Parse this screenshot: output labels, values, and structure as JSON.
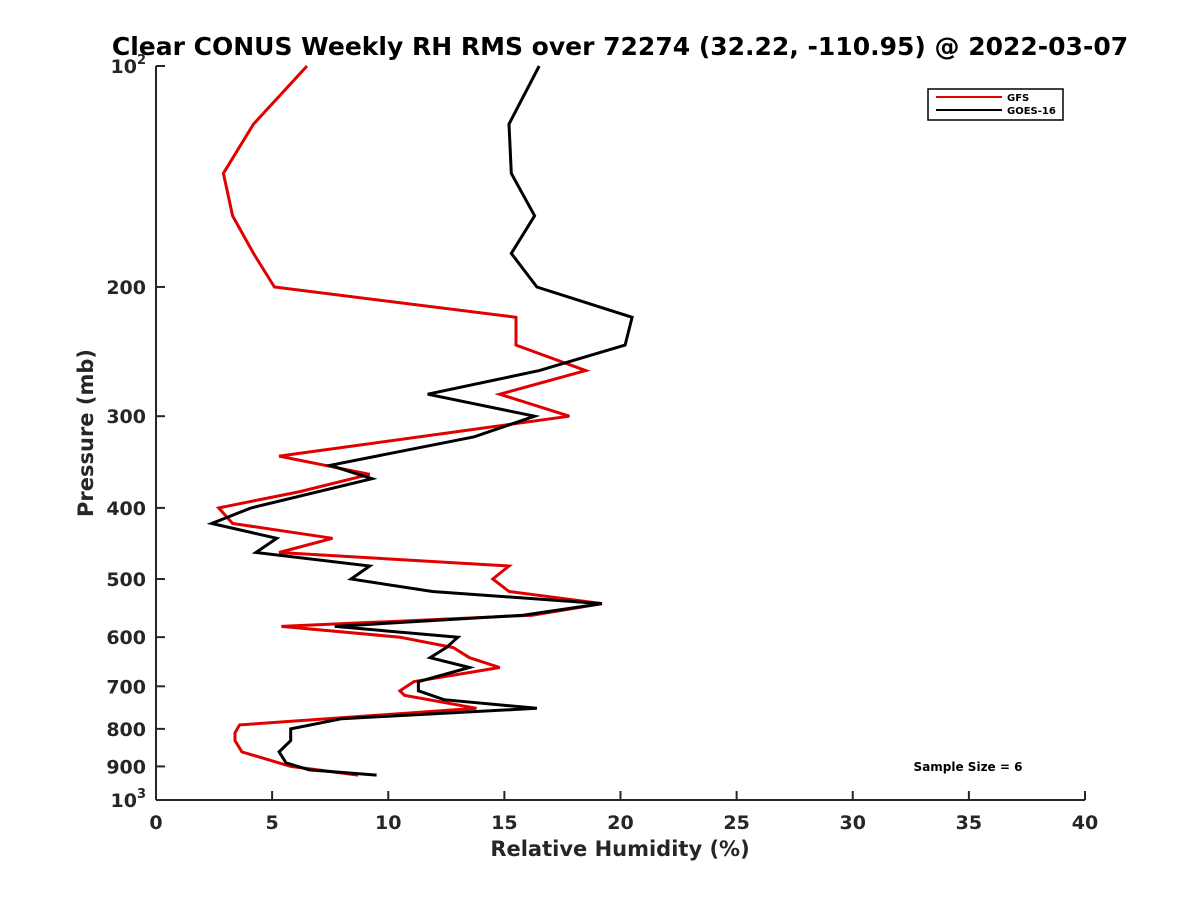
{
  "chart_data": {
    "type": "line",
    "title": "Clear CONUS Weekly RH RMS over 72274 (32.22, -110.95) @ 2022-03-07",
    "xlabel": "Relative Humidity (%)",
    "ylabel": "Pressure (mb)",
    "xlim": [
      0,
      40
    ],
    "ylim": [
      100,
      1000
    ],
    "y_scale": "log",
    "y_reversed": true,
    "x_ticks": [
      "0",
      "5",
      "10",
      "15",
      "20",
      "25",
      "30",
      "35",
      "40"
    ],
    "y_ticks": [
      {
        "value": 100,
        "base": "10",
        "exp": "2"
      },
      {
        "value": 200,
        "label": "200"
      },
      {
        "value": 300,
        "label": "300"
      },
      {
        "value": 400,
        "label": "400"
      },
      {
        "value": 500,
        "label": "500"
      },
      {
        "value": 600,
        "label": "600"
      },
      {
        "value": 700,
        "label": "700"
      },
      {
        "value": 800,
        "label": "800"
      },
      {
        "value": 900,
        "label": "900"
      },
      {
        "value": 1000,
        "base": "10",
        "exp": "3"
      }
    ],
    "grid": false,
    "legend_position": "top-right",
    "annotation": "Sample Size = 6",
    "series": [
      {
        "name": "GFS",
        "color": "#e00000",
        "points": [
          {
            "x": 6.5,
            "p": 100
          },
          {
            "x": 4.2,
            "p": 120
          },
          {
            "x": 2.9,
            "p": 140
          },
          {
            "x": 3.3,
            "p": 160
          },
          {
            "x": 4.2,
            "p": 180
          },
          {
            "x": 5.1,
            "p": 200
          },
          {
            "x": 15.5,
            "p": 220
          },
          {
            "x": 15.5,
            "p": 240
          },
          {
            "x": 18.5,
            "p": 260
          },
          {
            "x": 14.8,
            "p": 280
          },
          {
            "x": 17.8,
            "p": 300
          },
          {
            "x": 5.3,
            "p": 340
          },
          {
            "x": 9.2,
            "p": 360
          },
          {
            "x": 6.2,
            "p": 380
          },
          {
            "x": 2.7,
            "p": 400
          },
          {
            "x": 3.3,
            "p": 420
          },
          {
            "x": 7.6,
            "p": 440
          },
          {
            "x": 5.3,
            "p": 460
          },
          {
            "x": 15.2,
            "p": 480
          },
          {
            "x": 14.5,
            "p": 500
          },
          {
            "x": 15.2,
            "p": 520
          },
          {
            "x": 19.2,
            "p": 540
          },
          {
            "x": 16.2,
            "p": 560
          },
          {
            "x": 5.4,
            "p": 580
          },
          {
            "x": 10.5,
            "p": 600
          },
          {
            "x": 12.8,
            "p": 620
          },
          {
            "x": 13.5,
            "p": 640
          },
          {
            "x": 14.8,
            "p": 660
          },
          {
            "x": 11.1,
            "p": 690
          },
          {
            "x": 10.5,
            "p": 710
          },
          {
            "x": 10.7,
            "p": 720
          },
          {
            "x": 13.8,
            "p": 750
          },
          {
            "x": 3.6,
            "p": 790
          },
          {
            "x": 3.4,
            "p": 810
          },
          {
            "x": 3.4,
            "p": 830
          },
          {
            "x": 3.7,
            "p": 860
          },
          {
            "x": 5.8,
            "p": 900
          },
          {
            "x": 8.7,
            "p": 925
          }
        ]
      },
      {
        "name": "GOES-16",
        "color": "#000000",
        "points": [
          {
            "x": 16.5,
            "p": 100
          },
          {
            "x": 15.2,
            "p": 120
          },
          {
            "x": 15.3,
            "p": 140
          },
          {
            "x": 16.3,
            "p": 160
          },
          {
            "x": 15.3,
            "p": 180
          },
          {
            "x": 16.4,
            "p": 200
          },
          {
            "x": 20.5,
            "p": 220
          },
          {
            "x": 20.2,
            "p": 240
          },
          {
            "x": 16.5,
            "p": 260
          },
          {
            "x": 11.7,
            "p": 280
          },
          {
            "x": 16.3,
            "p": 300
          },
          {
            "x": 13.7,
            "p": 320
          },
          {
            "x": 7.5,
            "p": 350
          },
          {
            "x": 9.3,
            "p": 365
          },
          {
            "x": 4.1,
            "p": 400
          },
          {
            "x": 2.4,
            "p": 420
          },
          {
            "x": 5.2,
            "p": 440
          },
          {
            "x": 4.3,
            "p": 460
          },
          {
            "x": 9.2,
            "p": 480
          },
          {
            "x": 8.4,
            "p": 500
          },
          {
            "x": 11.9,
            "p": 520
          },
          {
            "x": 19.2,
            "p": 540
          },
          {
            "x": 15.8,
            "p": 560
          },
          {
            "x": 7.7,
            "p": 580
          },
          {
            "x": 13.0,
            "p": 600
          },
          {
            "x": 12.5,
            "p": 620
          },
          {
            "x": 11.8,
            "p": 640
          },
          {
            "x": 13.5,
            "p": 660
          },
          {
            "x": 11.3,
            "p": 690
          },
          {
            "x": 11.3,
            "p": 710
          },
          {
            "x": 12.4,
            "p": 730
          },
          {
            "x": 16.4,
            "p": 750
          },
          {
            "x": 8.0,
            "p": 775
          },
          {
            "x": 5.8,
            "p": 800
          },
          {
            "x": 5.8,
            "p": 830
          },
          {
            "x": 5.3,
            "p": 860
          },
          {
            "x": 5.6,
            "p": 890
          },
          {
            "x": 6.6,
            "p": 910
          },
          {
            "x": 9.5,
            "p": 925
          }
        ]
      }
    ]
  }
}
